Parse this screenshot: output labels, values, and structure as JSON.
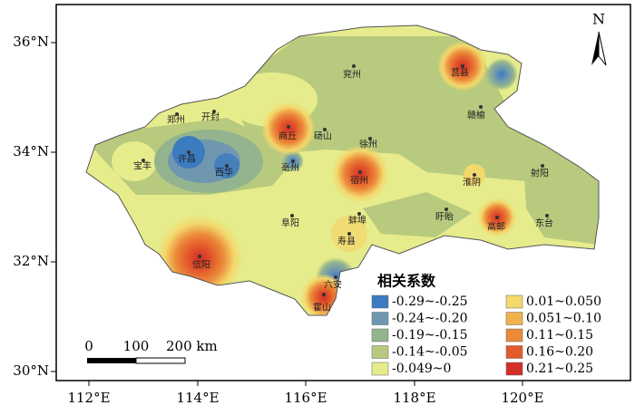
{
  "map": {
    "x_ticks": [
      "112°E",
      "114°E",
      "116°E",
      "118°E",
      "120°E"
    ],
    "y_ticks": [
      "36°N",
      "34°N",
      "32°N",
      "30°N"
    ],
    "north": "N",
    "cities": [
      "兖州",
      "莒县",
      "郑州",
      "开封",
      "商丘",
      "砀山",
      "赣榆",
      "徐州",
      "许昌",
      "宝丰",
      "西华",
      "亳州",
      "宿州",
      "淮阴",
      "射阳",
      "阜阳",
      "蚌埠",
      "盱眙",
      "高邮",
      "东台",
      "寿县",
      "信阳",
      "六安",
      "霍山"
    ],
    "legend": {
      "title": "相关系数",
      "items": [
        {
          "label": "-0.29~-0.25",
          "color": "#3b7bbf"
        },
        {
          "label": "-0.24~-0.20",
          "color": "#6f98b0"
        },
        {
          "label": "-0.19~-0.15",
          "color": "#93b48e"
        },
        {
          "label": "-0.14~-0.05",
          "color": "#b7ca7e"
        },
        {
          "label": "-0.049~0",
          "color": "#e6ec8c"
        },
        {
          "label": "0.01~0.050",
          "color": "#f3d86c"
        },
        {
          "label": "0.051~0.10",
          "color": "#f1b24d"
        },
        {
          "label": "0.11~0.15",
          "color": "#ec8a3a"
        },
        {
          "label": "0.16~0.20",
          "color": "#e35a2b"
        },
        {
          "label": "0.21~0.25",
          "color": "#d22f28"
        }
      ]
    },
    "scale_bar": [
      "0",
      "100",
      "200 km"
    ]
  }
}
